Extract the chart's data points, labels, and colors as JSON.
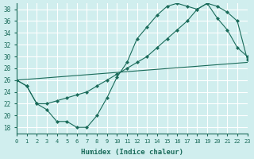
{
  "xlabel": "Humidex (Indice chaleur)",
  "ylabel": "",
  "bg_color": "#d0eeee",
  "grid_color": "#ffffff",
  "line_color": "#1a6b5a",
  "xlim": [
    0,
    23
  ],
  "ylim": [
    17,
    39
  ],
  "xticks": [
    0,
    1,
    2,
    3,
    4,
    5,
    6,
    7,
    8,
    9,
    10,
    11,
    12,
    13,
    14,
    15,
    16,
    17,
    18,
    19,
    20,
    21,
    22,
    23
  ],
  "yticks": [
    18,
    20,
    22,
    24,
    26,
    28,
    30,
    32,
    34,
    36,
    38
  ],
  "line1_x": [
    0,
    1,
    2,
    3,
    4,
    5,
    6,
    7,
    8,
    9,
    10,
    11,
    12,
    13,
    14,
    15,
    16,
    17,
    18,
    19,
    20,
    21,
    22,
    23
  ],
  "line1_y": [
    26.0,
    25.0,
    22.0,
    21.0,
    19.0,
    19.0,
    18.0,
    18.0,
    20.0,
    23.0,
    26.5,
    29.0,
    33.0,
    35.0,
    37.0,
    38.5,
    39.0,
    38.5,
    38.0,
    39.0,
    36.5,
    34.5,
    31.5,
    30.0
  ],
  "line2_x": [
    0,
    1,
    2,
    3,
    4,
    5,
    6,
    7,
    8,
    9,
    10,
    11,
    12,
    13,
    14,
    15,
    16,
    17,
    18,
    19,
    20,
    21,
    22,
    23
  ],
  "line2_y": [
    26.0,
    25.0,
    22.0,
    22.0,
    22.5,
    23.0,
    23.5,
    24.0,
    25.0,
    26.0,
    27.0,
    28.0,
    29.0,
    30.0,
    31.5,
    33.0,
    34.5,
    36.0,
    38.0,
    39.0,
    38.5,
    37.5,
    36.0,
    29.5
  ],
  "line3_x": [
    0,
    23
  ],
  "line3_y": [
    26.0,
    29.0
  ]
}
